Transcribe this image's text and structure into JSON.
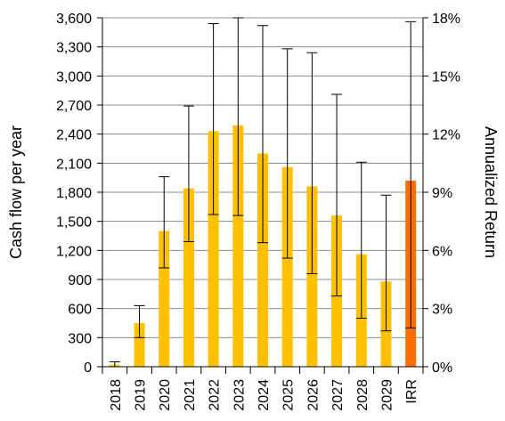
{
  "chart_data": {
    "type": "bar",
    "title": "",
    "ylabel": "Cash flow per year",
    "ylabel_right": "Annualized Return",
    "ylim": [
      0,
      3600
    ],
    "yticks": [
      "0",
      "300",
      "600",
      "900",
      "1,200",
      "1,500",
      "1,800",
      "2,100",
      "2,400",
      "2,700",
      "3,000",
      "3,300",
      "3,600"
    ],
    "y2lim": [
      0,
      18
    ],
    "y2ticks": [
      "0%",
      "3%",
      "6%",
      "9%",
      "12%",
      "15%",
      "18%"
    ],
    "grid": true,
    "legend": "none",
    "categories": [
      "2018",
      "2019",
      "2020",
      "2021",
      "2022",
      "2023",
      "2024",
      "2025",
      "2026",
      "2027",
      "2028",
      "2029",
      "IRR"
    ],
    "series": [
      {
        "values": [
          20,
          450,
          1400,
          1840,
          2430,
          2490,
          2200,
          2060,
          1860,
          1560,
          1160,
          880,
          null
        ],
        "error_low": [
          0,
          300,
          1020,
          1290,
          1570,
          1560,
          1280,
          1120,
          960,
          730,
          500,
          370,
          null
        ],
        "error_high": [
          50,
          630,
          1960,
          2690,
          3540,
          3600,
          3520,
          3280,
          3240,
          2810,
          2110,
          1770,
          null
        ],
        "color": "#FFC000",
        "axis": "left"
      },
      {
        "values": [
          null,
          null,
          null,
          null,
          null,
          null,
          null,
          null,
          null,
          null,
          null,
          null,
          9.6
        ],
        "error_low": [
          null,
          null,
          null,
          null,
          null,
          null,
          null,
          null,
          null,
          null,
          null,
          null,
          2.0
        ],
        "error_high": [
          null,
          null,
          null,
          null,
          null,
          null,
          null,
          null,
          null,
          null,
          null,
          null,
          17.8
        ],
        "color": "#FF6F00",
        "axis": "right"
      }
    ]
  }
}
